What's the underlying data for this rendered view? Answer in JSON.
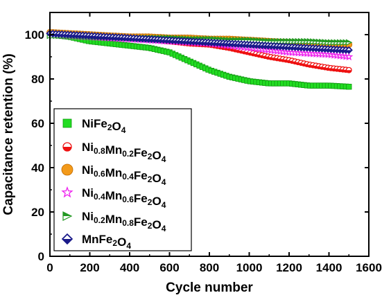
{
  "chart_data": {
    "type": "scatter",
    "title": "",
    "xlabel": "Cycle number",
    "ylabel": "Capacitance retention (%)",
    "xlim": [
      0,
      1600
    ],
    "ylim": [
      0,
      110
    ],
    "xticks": [
      0,
      200,
      400,
      600,
      800,
      1000,
      1200,
      1400,
      1600
    ],
    "yticks": [
      0,
      20,
      40,
      60,
      80,
      100
    ],
    "grid": false,
    "legend_position": "lower-left",
    "x": [
      0,
      100,
      200,
      300,
      400,
      500,
      600,
      700,
      800,
      900,
      1000,
      1100,
      1200,
      1300,
      1400,
      1500
    ],
    "series": [
      {
        "name": "NiFe2O4",
        "label_parts": [
          [
            "Ni",
            ""
          ],
          [
            "Fe",
            ""
          ],
          [
            "2",
            "sub"
          ],
          [
            "O",
            ""
          ],
          [
            "4",
            "sub"
          ]
        ],
        "marker": "square",
        "color": "#22dd22",
        "values": [
          100,
          99,
          97,
          96,
          95,
          94,
          92,
          88,
          84,
          81,
          79,
          78,
          78,
          77,
          77,
          76.5
        ]
      },
      {
        "name": "Ni0.8Mn0.2Fe2O4",
        "label_parts": [
          [
            "Ni",
            ""
          ],
          [
            "0.8",
            "sub"
          ],
          [
            "Mn",
            ""
          ],
          [
            "0.2",
            "sub"
          ],
          [
            "Fe",
            ""
          ],
          [
            "2",
            "sub"
          ],
          [
            "O",
            ""
          ],
          [
            "4",
            "sub"
          ]
        ],
        "marker": "half-circle",
        "color": "#ee1111",
        "values": [
          100.5,
          100,
          99.5,
          99,
          98.5,
          98,
          97,
          96,
          95.5,
          94,
          92,
          90,
          88.5,
          86.5,
          85,
          84
        ]
      },
      {
        "name": "Ni0.6Mn0.4Fe2O4",
        "label_parts": [
          [
            "Ni",
            ""
          ],
          [
            "0.6",
            "sub"
          ],
          [
            "Mn",
            ""
          ],
          [
            "0.4",
            "sub"
          ],
          [
            "Fe",
            ""
          ],
          [
            "2",
            "sub"
          ],
          [
            "O",
            ""
          ],
          [
            "4",
            "sub"
          ]
        ],
        "marker": "circle",
        "color": "#f39a1a",
        "values": [
          101,
          100.5,
          100,
          99.5,
          99,
          99,
          98.5,
          98.5,
          98,
          98,
          97.5,
          97,
          96.5,
          96,
          96,
          95.5
        ]
      },
      {
        "name": "Ni0.4Mn0.6Fe2O4",
        "label_parts": [
          [
            "Ni",
            ""
          ],
          [
            "0.4",
            "sub"
          ],
          [
            "Mn",
            ""
          ],
          [
            "0.6",
            "sub"
          ],
          [
            "Fe",
            ""
          ],
          [
            "2",
            "sub"
          ],
          [
            "O",
            ""
          ],
          [
            "4",
            "sub"
          ]
        ],
        "marker": "star",
        "color": "#ee22ee",
        "values": [
          100,
          99.5,
          99,
          98.5,
          98,
          97.5,
          97,
          96.5,
          96,
          95,
          94,
          93,
          92,
          91.5,
          91,
          90
        ]
      },
      {
        "name": "Ni0.2Mn0.8Fe2O4",
        "label_parts": [
          [
            "Ni",
            ""
          ],
          [
            "0.2",
            "sub"
          ],
          [
            "Mn",
            ""
          ],
          [
            "0.8",
            "sub"
          ],
          [
            "Fe",
            ""
          ],
          [
            "2",
            "sub"
          ],
          [
            "O",
            ""
          ],
          [
            "4",
            "sub"
          ]
        ],
        "marker": "half-triangle",
        "color": "#229922",
        "values": [
          99.5,
          99.5,
          99,
          99,
          98.5,
          98.5,
          98.5,
          98,
          98,
          97.5,
          97.5,
          97,
          97,
          97,
          96.5,
          96.5
        ]
      },
      {
        "name": "MnFe2O4",
        "label_parts": [
          [
            "Mn",
            ""
          ],
          [
            "Fe",
            ""
          ],
          [
            "2",
            "sub"
          ],
          [
            "O",
            ""
          ],
          [
            "4",
            "sub"
          ]
        ],
        "marker": "diamond",
        "color": "#1a1a8a",
        "values": [
          100.5,
          100,
          99.5,
          99,
          98.5,
          98,
          97.5,
          97,
          96.5,
          96,
          95.5,
          95,
          94.5,
          94,
          93.5,
          93
        ]
      }
    ]
  }
}
